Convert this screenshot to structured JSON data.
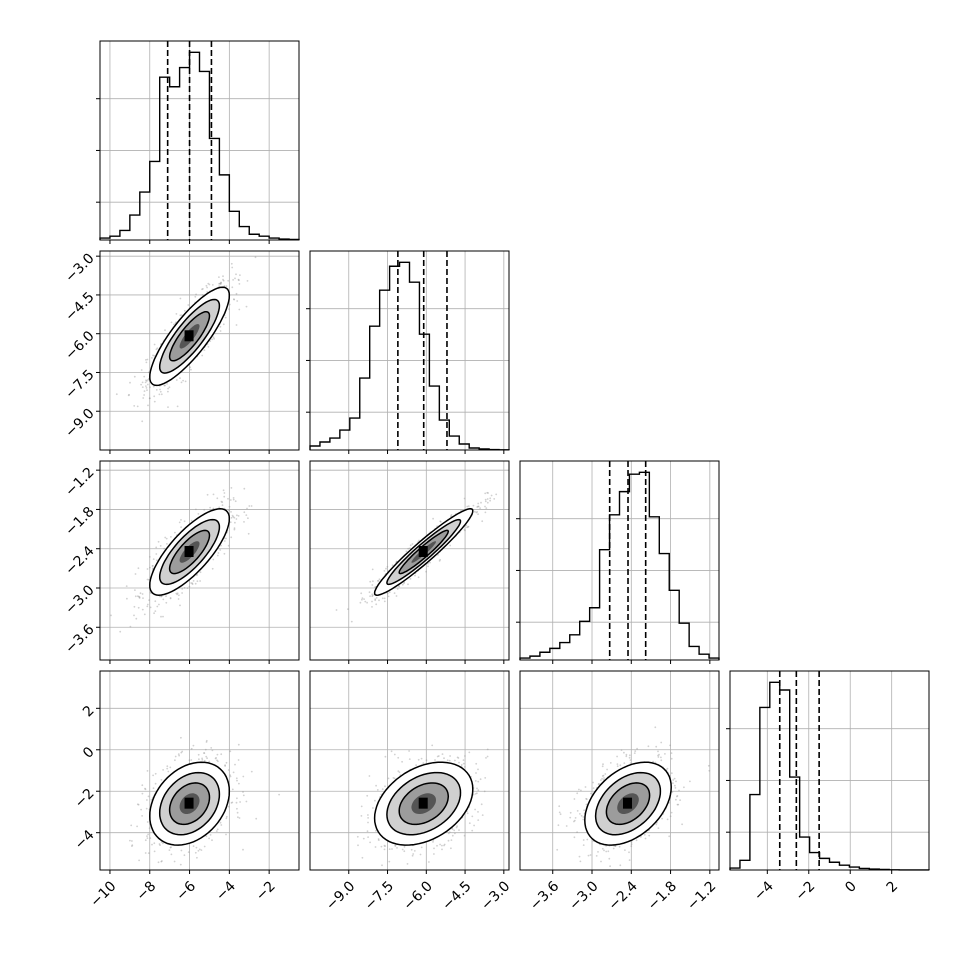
{
  "chart_data": {
    "type": "corner",
    "parameters": [
      {
        "range": [
          -10.5,
          -0.5
        ],
        "ticks": [
          -10,
          -8,
          -6,
          -4,
          -2
        ],
        "tick_labels": [
          "−10",
          "−8",
          "−6",
          "−4",
          "−2"
        ],
        "quantiles": [
          -7.1,
          -6.0,
          -4.9
        ],
        "mean": -6.0,
        "sd": 1.0
      },
      {
        "range": [
          -10.5,
          -2.8
        ],
        "ticks": [
          -9.0,
          -7.5,
          -6.0,
          -4.5,
          -3.0
        ],
        "tick_labels": [
          "−9.0",
          "−7.5",
          "−6.0",
          "−4.5",
          "−3.0"
        ],
        "quantiles": [
          -7.1,
          -6.1,
          -5.2
        ],
        "mean": -6.1,
        "sd": 0.95
      },
      {
        "range": [
          -4.1,
          -1.06
        ],
        "ticks": [
          -3.6,
          -3.0,
          -2.4,
          -1.8,
          -1.2
        ],
        "tick_labels": [
          "−3.6",
          "−3.0",
          "−2.4",
          "−1.8",
          "−1.2"
        ],
        "quantiles": [
          -2.73,
          -2.45,
          -2.18
        ],
        "mean": -2.45,
        "sd": 0.33
      },
      {
        "range": [
          -5.8,
          3.8
        ],
        "ticks": [
          -4,
          -2,
          0,
          2
        ],
        "tick_labels": [
          "−4",
          "−2",
          "0",
          "2"
        ],
        "quantiles": [
          -3.4,
          -2.6,
          -1.5
        ],
        "mean": -2.6,
        "sd": 1.0
      }
    ],
    "histograms": [
      [
        1,
        2,
        5,
        13,
        25,
        41,
        85,
        80,
        90,
        98,
        88,
        53,
        34,
        15,
        7,
        3,
        2,
        1,
        0.5,
        0.3
      ],
      [
        2,
        4,
        6,
        10,
        16,
        36,
        62,
        80,
        92,
        94,
        84,
        58,
        32,
        15,
        7,
        3,
        1,
        0.5,
        0.2,
        0.1
      ],
      [
        1,
        2,
        4,
        6,
        9,
        13,
        20,
        27,
        57,
        75,
        87,
        96,
        97,
        74,
        55,
        36,
        19,
        7,
        3,
        1
      ],
      [
        1,
        5,
        39,
        84,
        97,
        93,
        48,
        17,
        9,
        6,
        4,
        2.5,
        1.5,
        0.8,
        0.5,
        0.3,
        0.1,
        0.05,
        0.05,
        0.05
      ]
    ],
    "correlations": [
      [
        1,
        0.83,
        0.77,
        0.3
      ],
      [
        0.83,
        1,
        0.95,
        0.35
      ],
      [
        0.77,
        0.95,
        1,
        0.4
      ],
      [
        0.3,
        0.35,
        0.4,
        1
      ]
    ],
    "contour_levels": [
      0.5,
      1.0,
      1.5,
      2.0
    ],
    "grid": true
  }
}
